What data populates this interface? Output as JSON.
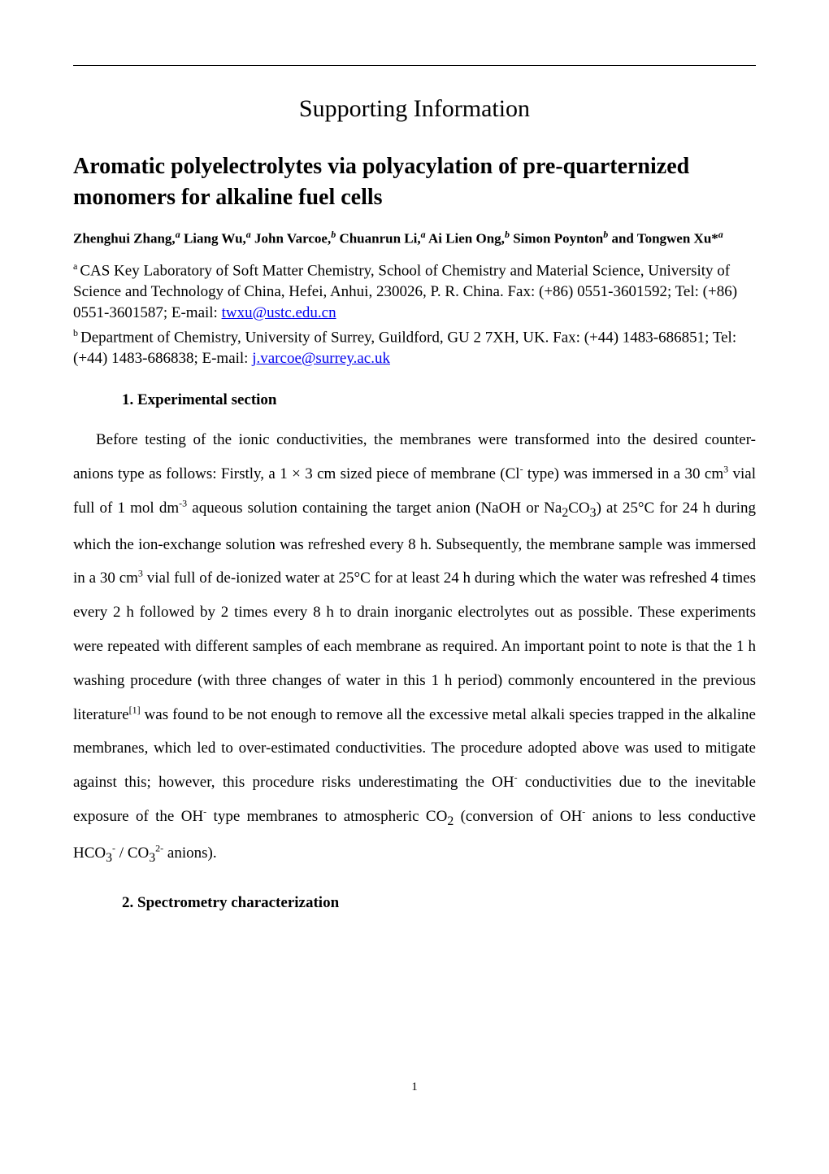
{
  "supporting_header": "Supporting Information",
  "title": "Aromatic polyelectrolytes via polyacylation of pre-quarternized monomers for alkaline fuel cells",
  "authors": {
    "a1_name": "Zhenghui Zhang,",
    "a1_sup": "a",
    "a2_name": " Liang Wu,",
    "a2_sup": "a",
    "a3_name": " John Varcoe,",
    "a3_sup": "b",
    "a4_name": " Chuanrun Li,",
    "a4_sup": "a",
    "a5_name": " Ai Lien Ong,",
    "a5_sup": "b",
    "a6_name": " Simon Poynton",
    "a6_sup": "b",
    "a7_name": " and Tongwen Xu*",
    "a7_sup": "a"
  },
  "affil_a": {
    "sup": "a ",
    "text_1": "CAS Key Laboratory of Soft Matter Chemistry, School of Chemistry and Material Science, University of Science and Technology of China, Hefei, Anhui, 230026, P. R. China. Fax: (+86) 0551-3601592; Tel: (+86) 0551-3601587; E-mail: ",
    "email": "twxu@ustc.edu.cn"
  },
  "affil_b": {
    "sup": "b ",
    "text_1": "Department of Chemistry, University of Surrey, Guildford, GU 2 7XH, UK. Fax: (+44) 1483-686851; Tel: (+44) 1483-686838; E-mail: ",
    "email": "j.varcoe@surrey.ac.uk"
  },
  "section1_heading": "1.    Experimental section",
  "body_p1_1": "Before testing of the ionic conductivities, the membranes were transformed into the desired counter-anions type as follows: Firstly, a 1 × 3 cm sized piece of membrane (Cl",
  "body_p1_sup1": "-",
  "body_p1_2": " type) was immersed in a 30 cm",
  "body_p1_sup2": "3",
  "body_p1_3": " vial full of 1 mol dm",
  "body_p1_sup3": "-3",
  "body_p1_4": " aqueous solution containing the target anion (NaOH or Na",
  "body_p1_sub1": "2",
  "body_p1_5": "CO",
  "body_p1_sub2": "3",
  "body_p1_6": ") at 25°C for 24 h during which the ion-exchange solution was refreshed every 8 h. Subsequently, the membrane sample was immersed in a 30 cm",
  "body_p1_sup4": "3",
  "body_p1_7": " vial full of de-ionized water at 25°C for at least 24 h during which the water was refreshed 4 times every 2 h followed by 2 times every 8 h to drain inorganic electrolytes out as possible. These experiments were repeated with different samples of each membrane as required. An important point to note is that the 1 h washing procedure (with three changes of water in this 1 h period) commonly encountered in the previous literature",
  "body_p1_sup5": "[1]",
  "body_p1_8": " was found to be not enough to remove all the excessive metal alkali species trapped in the alkaline membranes, which led to over-estimated conductivities. The procedure adopted above was used to mitigate against this; however, this procedure risks underestimating the OH",
  "body_p1_sup6": "-",
  "body_p1_9": " conductivities due to the inevitable exposure of the OH",
  "body_p1_sup7": "-",
  "body_p1_10": " type membranes to atmospheric CO",
  "body_p1_sub3": "2",
  "body_p1_11": " (conversion of OH",
  "body_p1_sup8": "-",
  "body_p1_12": " anions to less conductive HCO",
  "body_p1_sub4": "3",
  "body_p1_sup9": "-",
  "body_p1_13": " / CO",
  "body_p1_sub5": "3",
  "body_p1_sup10": "2-",
  "body_p1_14": " anions).",
  "section2_heading": "2.    Spectrometry characterization",
  "page_number": "1"
}
